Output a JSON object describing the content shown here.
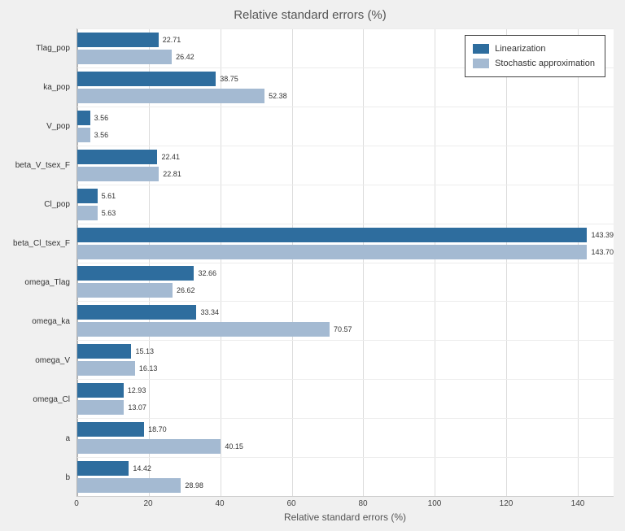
{
  "chart_data": {
    "type": "bar",
    "orientation": "horizontal",
    "title": "Relative standard errors (%)",
    "xlabel": "Relative standard errors (%)",
    "categories": [
      "Tlag_pop",
      "ka_pop",
      "V_pop",
      "beta_V_tsex_F",
      "Cl_pop",
      "beta_Cl_tsex_F",
      "omega_Tlag",
      "omega_ka",
      "omega_V",
      "omega_Cl",
      "a",
      "b"
    ],
    "series": [
      {
        "name": "Linearization",
        "color": "#2e6d9e",
        "values": [
          22.71,
          38.75,
          3.56,
          22.41,
          5.61,
          143.39,
          32.66,
          33.34,
          15.13,
          12.93,
          18.7,
          14.42
        ]
      },
      {
        "name": "Stochastic approximation",
        "color": "#a4bad2",
        "values": [
          26.42,
          52.38,
          3.56,
          22.81,
          5.63,
          143.7,
          26.62,
          70.57,
          16.13,
          13.07,
          40.15,
          28.98
        ]
      }
    ],
    "xlim": [
      0,
      150
    ],
    "xticks": [
      0,
      20,
      40,
      60,
      80,
      100,
      120,
      140
    ],
    "grid": true,
    "legend_position": "top-right"
  }
}
